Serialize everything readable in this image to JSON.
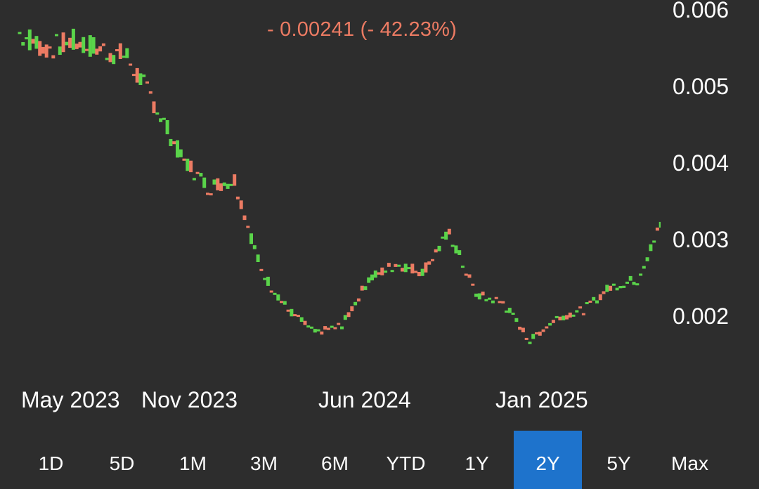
{
  "header": {
    "change_text": "- 0.00241 (- 42.23%)"
  },
  "chart_data": {
    "type": "candlestick",
    "y_ticks": [
      "0.006",
      "0.005",
      "0.004",
      "0.003",
      "0.002"
    ],
    "x_ticks": [
      "May 2023",
      "Nov 2023",
      "Jun 2024",
      "Jan 2025"
    ],
    "ylim": [
      0.0015,
      0.006
    ],
    "grid": false,
    "colors": {
      "up": "#5ad44a",
      "down": "#ec7b63",
      "text": "#ffffff"
    },
    "x": [
      "2023-05",
      "2023-06",
      "2023-07",
      "2023-08",
      "2023-09",
      "2023-10",
      "2023-11",
      "2023-12",
      "2024-01",
      "2024-02",
      "2024-03",
      "2024-04",
      "2024-05",
      "2024-06",
      "2024-07",
      "2024-08",
      "2024-09",
      "2024-10",
      "2024-11",
      "2024-12",
      "2025-01",
      "2025-02",
      "2025-03",
      "2025-04",
      "2025-05"
    ],
    "series": [
      {
        "values": [
          0.0057,
          0.0055,
          0.0056,
          0.0055,
          0.0054,
          0.0048,
          0.0041,
          0.0037,
          0.0038,
          0.0026,
          0.0021,
          0.0018,
          0.0019,
          0.0025,
          0.0027,
          0.0026,
          0.0031,
          0.0023,
          0.0022,
          0.0017,
          0.002,
          0.0021,
          0.0024,
          0.0025,
          0.0033
        ]
      }
    ]
  },
  "range_buttons": [
    {
      "label": "1D",
      "active": false
    },
    {
      "label": "5D",
      "active": false
    },
    {
      "label": "1M",
      "active": false
    },
    {
      "label": "3M",
      "active": false
    },
    {
      "label": "6M",
      "active": false
    },
    {
      "label": "YTD",
      "active": false
    },
    {
      "label": "1Y",
      "active": false
    },
    {
      "label": "2Y",
      "active": true
    },
    {
      "label": "5Y",
      "active": false
    },
    {
      "label": "Max",
      "active": false
    }
  ]
}
